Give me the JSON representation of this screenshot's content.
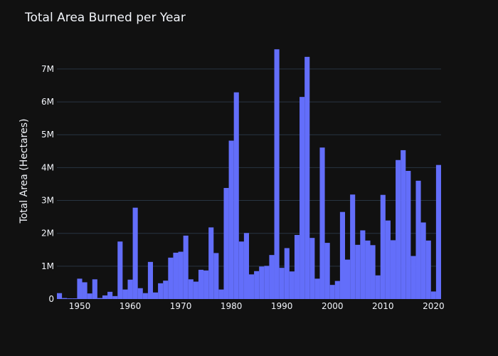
{
  "chart_data": {
    "type": "bar",
    "title": "Total Area Burned per Year",
    "xlabel": "",
    "ylabel": "Total Area (Hectares)",
    "xlim": [
      1945.5,
      2021.5
    ],
    "ylim": [
      0,
      7800000
    ],
    "x_ticks": [
      1950,
      1960,
      1970,
      1980,
      1990,
      2000,
      2010,
      2020
    ],
    "x_tick_labels": [
      "1950",
      "1960",
      "1970",
      "1980",
      "1990",
      "2000",
      "2010",
      "2020"
    ],
    "y_ticks": [
      0,
      1000000,
      2000000,
      3000000,
      4000000,
      5000000,
      6000000,
      7000000
    ],
    "y_tick_labels": [
      "0",
      "1M",
      "2M",
      "3M",
      "4M",
      "5M",
      "6M",
      "7M"
    ],
    "grid": true,
    "bar_color": "#636efa",
    "x": [
      1946,
      1947,
      1948,
      1949,
      1950,
      1951,
      1952,
      1953,
      1954,
      1955,
      1956,
      1957,
      1958,
      1959,
      1960,
      1961,
      1962,
      1963,
      1964,
      1965,
      1966,
      1967,
      1968,
      1969,
      1970,
      1971,
      1972,
      1973,
      1974,
      1975,
      1976,
      1977,
      1978,
      1979,
      1980,
      1981,
      1982,
      1983,
      1984,
      1985,
      1986,
      1987,
      1988,
      1989,
      1990,
      1991,
      1992,
      1993,
      1994,
      1995,
      1996,
      1997,
      1998,
      1999,
      2000,
      2001,
      2002,
      2003,
      2004,
      2005,
      2006,
      2007,
      2008,
      2009,
      2010,
      2011,
      2012,
      2013,
      2014,
      2015,
      2016,
      2017,
      2018,
      2019,
      2020,
      2021
    ],
    "values": [
      180000,
      30000,
      20000,
      20000,
      620000,
      510000,
      170000,
      600000,
      30000,
      110000,
      220000,
      90000,
      1750000,
      290000,
      590000,
      2780000,
      330000,
      180000,
      1130000,
      200000,
      480000,
      560000,
      1260000,
      1410000,
      1440000,
      1930000,
      600000,
      530000,
      890000,
      870000,
      2180000,
      1400000,
      290000,
      3380000,
      4820000,
      6290000,
      1750000,
      2010000,
      750000,
      850000,
      990000,
      1010000,
      1340000,
      7600000,
      950000,
      1550000,
      840000,
      1950000,
      6150000,
      7370000,
      1860000,
      620000,
      4610000,
      1710000,
      430000,
      550000,
      2650000,
      1200000,
      3180000,
      1650000,
      2090000,
      1780000,
      1640000,
      720000,
      3170000,
      2390000,
      1790000,
      4230000,
      4530000,
      3900000,
      1310000,
      3600000,
      2330000,
      1780000,
      230000,
      4080000
    ]
  }
}
